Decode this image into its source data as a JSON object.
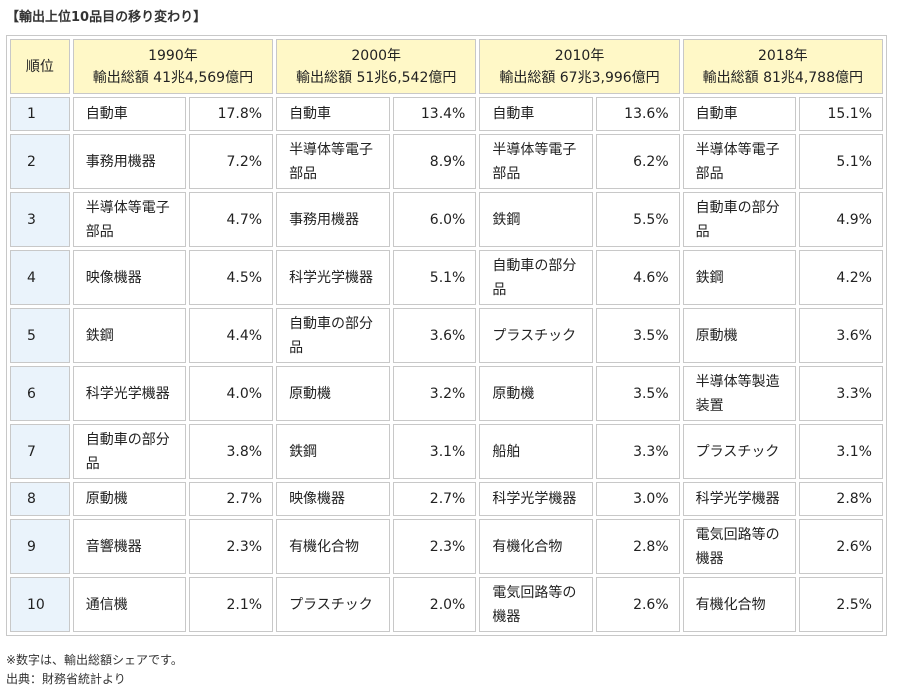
{
  "title": "【輸出上位10品目の移り変わり】",
  "rank_header": "順位",
  "periods": [
    {
      "year": "1990年",
      "total": "輸出総額 41兆4,569億円"
    },
    {
      "year": "2000年",
      "total": "輸出総額 51兆6,542億円"
    },
    {
      "year": "2010年",
      "total": "輸出総額 67兆3,996億円"
    },
    {
      "year": "2018年",
      "total": "輸出総額 81兆4,788億円"
    }
  ],
  "rows": [
    {
      "rank": "1",
      "cells": [
        {
          "item": "自動車",
          "share": "17.8%"
        },
        {
          "item": "自動車",
          "share": "13.4%"
        },
        {
          "item": "自動車",
          "share": "13.6%"
        },
        {
          "item": "自動車",
          "share": "15.1%"
        }
      ]
    },
    {
      "rank": "2",
      "cells": [
        {
          "item": "事務用機器",
          "share": "7.2%"
        },
        {
          "item": "半導体等電子部品",
          "share": "8.9%"
        },
        {
          "item": "半導体等電子部品",
          "share": "6.2%"
        },
        {
          "item": "半導体等電子部品",
          "share": "5.1%"
        }
      ]
    },
    {
      "rank": "3",
      "cells": [
        {
          "item": "半導体等電子部品",
          "share": "4.7%"
        },
        {
          "item": "事務用機器",
          "share": "6.0%"
        },
        {
          "item": "鉄鋼",
          "share": "5.5%"
        },
        {
          "item": "自動車の部分品",
          "share": "4.9%"
        }
      ]
    },
    {
      "rank": "4",
      "cells": [
        {
          "item": "映像機器",
          "share": "4.5%"
        },
        {
          "item": "科学光学機器",
          "share": "5.1%"
        },
        {
          "item": "自動車の部分品",
          "share": "4.6%"
        },
        {
          "item": "鉄鋼",
          "share": "4.2%"
        }
      ]
    },
    {
      "rank": "5",
      "cells": [
        {
          "item": "鉄鋼",
          "share": "4.4%"
        },
        {
          "item": "自動車の部分品",
          "share": "3.6%"
        },
        {
          "item": "プラスチック",
          "share": "3.5%"
        },
        {
          "item": "原動機",
          "share": "3.6%"
        }
      ]
    },
    {
      "rank": "6",
      "cells": [
        {
          "item": "科学光学機器",
          "share": "4.0%"
        },
        {
          "item": "原動機",
          "share": "3.2%"
        },
        {
          "item": "原動機",
          "share": "3.5%"
        },
        {
          "item": "半導体等製造装置",
          "share": "3.3%"
        }
      ]
    },
    {
      "rank": "7",
      "cells": [
        {
          "item": "自動車の部分品",
          "share": "3.8%"
        },
        {
          "item": "鉄鋼",
          "share": "3.1%"
        },
        {
          "item": "船舶",
          "share": "3.3%"
        },
        {
          "item": "プラスチック",
          "share": "3.1%"
        }
      ]
    },
    {
      "rank": "8",
      "cells": [
        {
          "item": "原動機",
          "share": "2.7%"
        },
        {
          "item": "映像機器",
          "share": "2.7%"
        },
        {
          "item": "科学光学機器",
          "share": "3.0%"
        },
        {
          "item": "科学光学機器",
          "share": "2.8%"
        }
      ]
    },
    {
      "rank": "9",
      "cells": [
        {
          "item": "音響機器",
          "share": "2.3%"
        },
        {
          "item": "有機化合物",
          "share": "2.3%"
        },
        {
          "item": "有機化合物",
          "share": "2.8%"
        },
        {
          "item": "電気回路等の機器",
          "share": "2.6%"
        }
      ]
    },
    {
      "rank": "10",
      "cells": [
        {
          "item": "通信機",
          "share": "2.1%"
        },
        {
          "item": "プラスチック",
          "share": "2.0%"
        },
        {
          "item": "電気回路等の機器",
          "share": "2.6%"
        },
        {
          "item": "有機化合物",
          "share": "2.5%"
        }
      ]
    }
  ],
  "notes": [
    "※数字は、輸出総額シェアです。",
    "出典：財務省統計より"
  ]
}
